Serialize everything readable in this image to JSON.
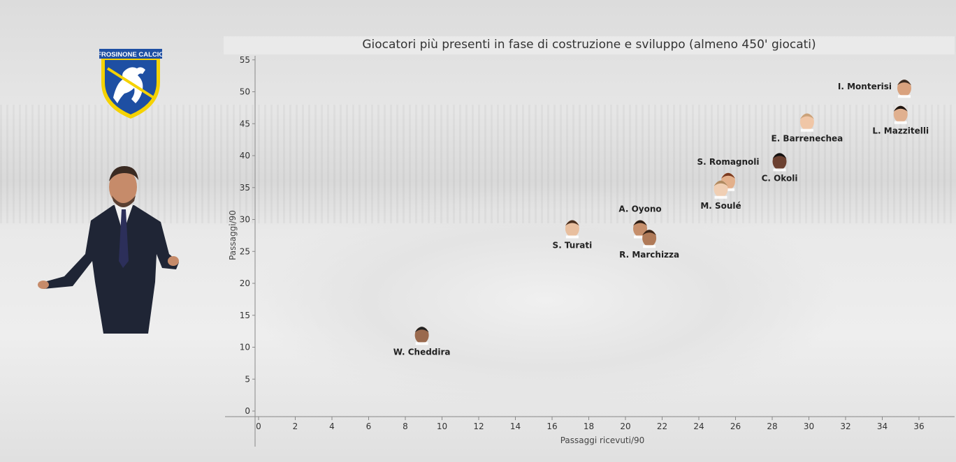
{
  "chart_data": {
    "type": "scatter",
    "title": "Giocatori più presenti in fase di costruzione e sviluppo (almeno 450' giocati)",
    "xlabel": "Passaggi ricevuti/90",
    "ylabel": "Passaggi/90",
    "xlim": [
      0,
      38
    ],
    "ylim": [
      -1,
      55.5
    ],
    "xticks": [
      "0",
      "2",
      "4",
      "6",
      "8",
      "10",
      "12",
      "14",
      "16",
      "18",
      "20",
      "22",
      "24",
      "26",
      "28",
      "30",
      "32",
      "34",
      "36"
    ],
    "yticks": [
      "0",
      "5",
      "10",
      "15",
      "20",
      "25",
      "30",
      "35",
      "40",
      "45",
      "50",
      "55"
    ],
    "points": [
      {
        "name": "I. Monterisi",
        "x": 35.2,
        "y": 50.8,
        "label_pos": "left"
      },
      {
        "name": "L. Mazzitelli",
        "x": 35.0,
        "y": 46.7,
        "label_pos": "below"
      },
      {
        "name": "E. Barrenechea",
        "x": 29.9,
        "y": 45.5,
        "label_pos": "below"
      },
      {
        "name": "C. Okoli",
        "x": 28.4,
        "y": 39.3,
        "label_pos": "below"
      },
      {
        "name": "S. Romagnoli",
        "x": 25.6,
        "y": 36.2,
        "label_pos": "above"
      },
      {
        "name": "M. Soulé",
        "x": 25.2,
        "y": 35.0,
        "label_pos": "below"
      },
      {
        "name": "A. Oyono",
        "x": 20.8,
        "y": 28.8,
        "label_pos": "above"
      },
      {
        "name": "R. Marchizza",
        "x": 21.3,
        "y": 27.3,
        "label_pos": "below"
      },
      {
        "name": "S. Turati",
        "x": 17.1,
        "y": 28.8,
        "label_pos": "below"
      },
      {
        "name": "W. Cheddira",
        "x": 8.9,
        "y": 12.1,
        "label_pos": "below"
      }
    ]
  },
  "branding": {
    "club_logo_text": "FROSINONE CALCIO",
    "colors": {
      "yellow": "#f5d200",
      "blue": "#1e4fa3"
    }
  }
}
